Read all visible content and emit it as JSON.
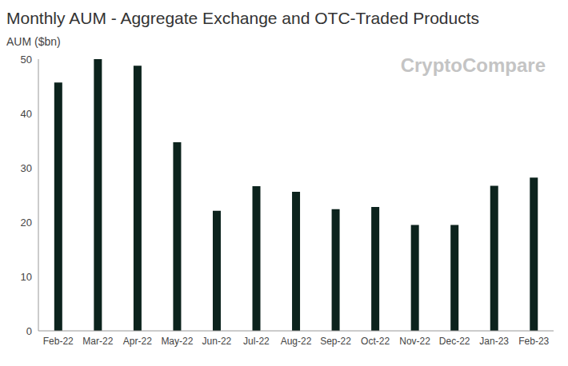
{
  "chart_data": {
    "type": "bar",
    "title": "Monthly AUM - Aggregate Exchange and OTC-Traded Products",
    "y_label": "AUM ($bn)",
    "annotations": [
      "CryptoCompare"
    ],
    "categories": [
      "Feb-22",
      "Mar-22",
      "Apr-22",
      "May-22",
      "Jun-22",
      "Jul-22",
      "Aug-22",
      "Sep-22",
      "Oct-22",
      "Nov-22",
      "Dec-22",
      "Jan-23",
      "Feb-23"
    ],
    "values": [
      45.7,
      50.0,
      48.8,
      34.7,
      22.1,
      26.6,
      25.6,
      22.4,
      22.8,
      19.5,
      19.5,
      26.7,
      28.2
    ],
    "color": "#0c231d",
    "ylim": [
      0,
      50
    ],
    "yticks": [
      0,
      10,
      20,
      30,
      40,
      50
    ],
    "grid": false,
    "legend": false,
    "data_labels": false
  }
}
